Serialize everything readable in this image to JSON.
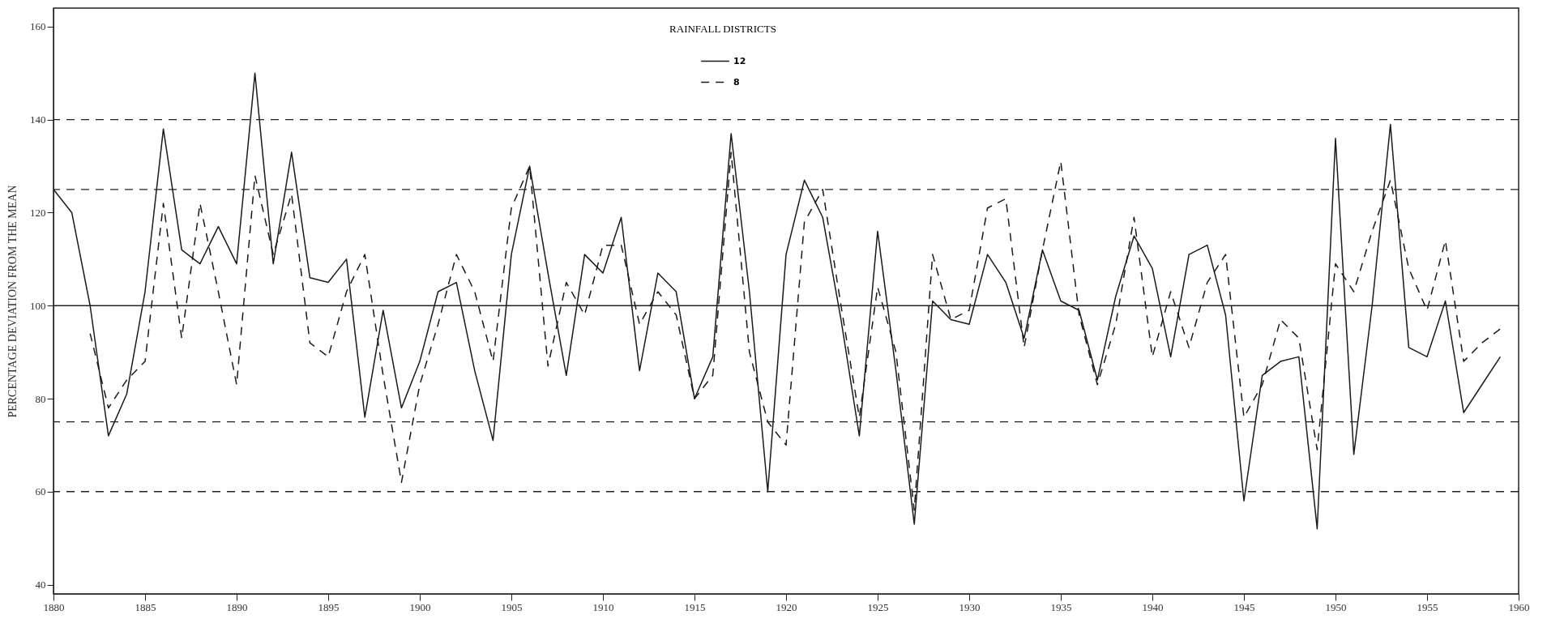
{
  "chart_data": {
    "type": "line",
    "ylabel": "PERCENTAGE DEVIATION FROM THE MEAN",
    "legend_title": "RAINFALL DISTRICTS",
    "legend": "top",
    "marker": "none",
    "xlim": [
      1880,
      1960
    ],
    "xticks": [
      1880,
      1885,
      1890,
      1895,
      1900,
      1905,
      1910,
      1915,
      1920,
      1925,
      1930,
      1935,
      1940,
      1945,
      1950,
      1955,
      1960
    ],
    "ylim": [
      38,
      164
    ],
    "yticks": [
      40,
      60,
      80,
      100,
      120,
      140,
      160
    ],
    "ref_lines": [
      {
        "axis": "y",
        "value": 140,
        "line_style": "dashed",
        "color": "#222222"
      },
      {
        "axis": "y",
        "value": 125,
        "line_style": "dashed",
        "color": "#222222"
      },
      {
        "axis": "y",
        "value": 100,
        "line_style": "solid",
        "color": "#222222"
      },
      {
        "axis": "y",
        "value": 75,
        "line_style": "dashed",
        "color": "#222222"
      },
      {
        "axis": "y",
        "value": 60,
        "line_style": "dashed",
        "color": "#222222"
      }
    ],
    "series": [
      {
        "name": "12",
        "color": "#1a1a1a",
        "line_style": "solid",
        "x": [
          1880,
          1881,
          1882,
          1883,
          1884,
          1885,
          1886,
          1887,
          1888,
          1889,
          1890,
          1891,
          1892,
          1893,
          1894,
          1895,
          1896,
          1897,
          1898,
          1899,
          1900,
          1901,
          1902,
          1903,
          1904,
          1905,
          1906,
          1907,
          1908,
          1909,
          1910,
          1911,
          1912,
          1913,
          1914,
          1915,
          1916,
          1917,
          1918,
          1919,
          1920,
          1921,
          1922,
          1923,
          1924,
          1925,
          1926,
          1927,
          1928,
          1929,
          1930,
          1931,
          1932,
          1933,
          1934,
          1935,
          1936,
          1937,
          1938,
          1939,
          1940,
          1941,
          1942,
          1943,
          1944,
          1945,
          1946,
          1947,
          1948,
          1949,
          1950,
          1951,
          1952,
          1953,
          1954,
          1955,
          1956,
          1957,
          1958,
          1959
        ],
        "values": [
          125,
          120,
          100,
          72,
          81,
          103,
          138,
          112,
          109,
          117,
          109,
          150,
          109,
          133,
          106,
          105,
          110,
          76,
          99,
          78,
          88,
          103,
          105,
          86,
          71,
          111,
          130,
          107,
          85,
          111,
          107,
          119,
          86,
          107,
          103,
          80,
          89,
          137,
          103,
          60,
          111,
          127,
          119,
          97,
          72,
          116,
          86,
          53,
          101,
          97,
          96,
          111,
          105,
          93,
          112,
          101,
          99,
          84,
          102,
          115,
          108,
          89,
          111,
          113,
          98,
          58,
          85,
          88,
          89,
          52,
          136,
          68,
          100,
          139,
          91,
          89,
          101,
          77,
          83,
          89
        ]
      },
      {
        "name": "8",
        "color": "#1a1a1a",
        "line_style": "dashed",
        "x": [
          1882,
          1883,
          1884,
          1885,
          1886,
          1887,
          1888,
          1889,
          1890,
          1891,
          1892,
          1893,
          1894,
          1895,
          1896,
          1897,
          1898,
          1899,
          1900,
          1901,
          1902,
          1903,
          1904,
          1905,
          1906,
          1907,
          1908,
          1909,
          1910,
          1911,
          1912,
          1913,
          1914,
          1915,
          1916,
          1917,
          1918,
          1919,
          1920,
          1921,
          1922,
          1923,
          1924,
          1925,
          1926,
          1927,
          1928,
          1929,
          1930,
          1931,
          1932,
          1933,
          1934,
          1935,
          1936,
          1937,
          1938,
          1939,
          1940,
          1941,
          1942,
          1943,
          1944,
          1945,
          1946,
          1947,
          1948,
          1949,
          1950,
          1951,
          1952,
          1953,
          1954,
          1955,
          1956,
          1957,
          1958,
          1959
        ],
        "values": [
          94,
          78,
          84,
          88,
          122,
          93,
          122,
          103,
          83,
          128,
          111,
          124,
          92,
          89,
          103,
          111,
          85,
          62,
          83,
          96,
          111,
          103,
          88,
          121,
          130,
          87,
          105,
          98,
          113,
          113,
          96,
          103,
          98,
          80,
          85,
          133,
          90,
          75,
          70,
          118,
          125,
          100,
          76,
          104,
          90,
          56,
          111,
          97,
          99,
          121,
          123,
          91,
          112,
          131,
          98,
          83,
          96,
          119,
          89,
          103,
          91,
          105,
          111,
          76,
          83,
          97,
          93,
          69,
          109,
          103,
          116,
          127,
          108,
          99,
          114,
          88,
          92,
          95
        ]
      }
    ]
  }
}
